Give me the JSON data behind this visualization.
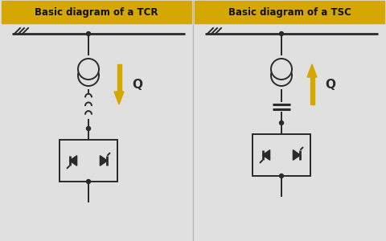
{
  "bg_color": "#e0e0e0",
  "header_color": "#d4a800",
  "header_text_color": "#111100",
  "line_color": "#2a2a2a",
  "arrow_color": "#d4a800",
  "title_tcr": "Basic diagram of a TCR",
  "title_tsc": "Basic diagram of a TSC",
  "title_fontsize": 8.5,
  "q_label": "Q",
  "fig_width": 4.8,
  "fig_height": 3.0,
  "dpi": 100
}
